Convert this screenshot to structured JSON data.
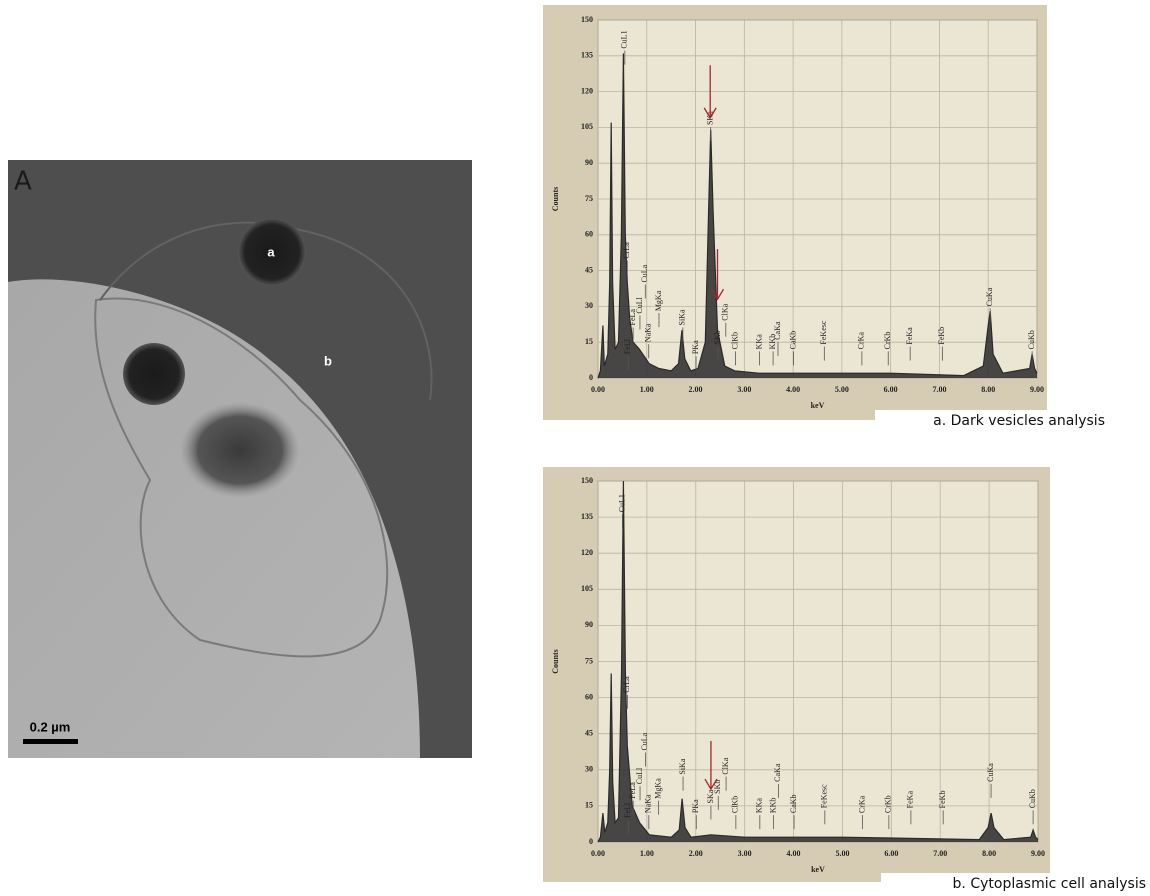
{
  "micrograph": {
    "panel_label": "A",
    "labels": [
      "a",
      "b"
    ],
    "scale_bar": "0.2 µm"
  },
  "chart_data": [
    {
      "type": "spectrum",
      "caption": "a. Dark vesicles analysis",
      "xlabel": "keV",
      "ylabel": "Counts",
      "color": "#2a2a2a",
      "grid": true,
      "xlim": [
        0,
        9
      ],
      "ylim": [
        0,
        150
      ],
      "xticks": [
        {
          "value": 0,
          "label": "0.00"
        },
        {
          "value": 1,
          "label": "1.00"
        },
        {
          "value": 2,
          "label": "2.00"
        },
        {
          "value": 3,
          "label": "3.00"
        },
        {
          "value": 4,
          "label": "4.00"
        },
        {
          "value": 5,
          "label": "5.00"
        },
        {
          "value": 6,
          "label": "6.00"
        },
        {
          "value": 7,
          "label": "7.00"
        },
        {
          "value": 8,
          "label": "8.00"
        },
        {
          "value": 9,
          "label": "9.00"
        }
      ],
      "yticks": [
        0,
        15,
        30,
        45,
        60,
        75,
        90,
        105,
        120,
        135,
        150
      ],
      "x": [
        0.0,
        0.05,
        0.1,
        0.13,
        0.2,
        0.24,
        0.27,
        0.3,
        0.35,
        0.42,
        0.48,
        0.52,
        0.56,
        0.6,
        0.65,
        0.72,
        0.85,
        0.95,
        1.05,
        1.25,
        1.5,
        1.65,
        1.72,
        1.78,
        1.9,
        2.05,
        2.2,
        2.28,
        2.31,
        2.36,
        2.45,
        2.6,
        2.8,
        3.3,
        3.7,
        4.5,
        6.0,
        7.5,
        7.9,
        8.0,
        8.04,
        8.1,
        8.3,
        8.85,
        8.9,
        8.95,
        9.0
      ],
      "values": [
        0,
        3,
        22,
        5,
        10,
        40,
        107,
        40,
        12,
        15,
        60,
        136,
        60,
        40,
        25,
        15,
        12,
        9,
        6,
        4,
        3,
        6,
        20,
        8,
        3,
        4,
        15,
        80,
        104,
        70,
        20,
        5,
        3,
        2,
        2,
        2,
        2,
        1,
        5,
        22,
        28,
        10,
        2,
        4,
        10,
        4,
        2
      ],
      "annotations": [
        {
          "text": "CuL1",
          "x": 0.55,
          "y": 138
        },
        {
          "text": "FeLl",
          "x": 0.62,
          "y": 10
        },
        {
          "text": "CrLa",
          "x": 0.6,
          "y": 50
        },
        {
          "text": "FeLa",
          "x": 0.72,
          "y": 22
        },
        {
          "text": "CuLl",
          "x": 0.86,
          "y": 27
        },
        {
          "text": "CuLa",
          "x": 0.97,
          "y": 40
        },
        {
          "text": "NaKa",
          "x": 1.04,
          "y": 15
        },
        {
          "text": "MgKa",
          "x": 1.25,
          "y": 28
        },
        {
          "text": "SiKa",
          "x": 1.74,
          "y": 22
        },
        {
          "text": "PKa",
          "x": 2.01,
          "y": 10
        },
        {
          "text": "SKa",
          "x": 2.31,
          "y": 106
        },
        {
          "text": "SKb",
          "x": 2.46,
          "y": 14
        },
        {
          "text": "ClKa",
          "x": 2.62,
          "y": 24
        },
        {
          "text": "ClKb",
          "x": 2.82,
          "y": 12
        },
        {
          "text": "KKa",
          "x": 3.31,
          "y": 12
        },
        {
          "text": "KKb",
          "x": 3.59,
          "y": 12
        },
        {
          "text": "CaKa",
          "x": 3.69,
          "y": 16
        },
        {
          "text": "CaKb",
          "x": 4.01,
          "y": 12
        },
        {
          "text": "FeKesc",
          "x": 4.64,
          "y": 14
        },
        {
          "text": "CrKa",
          "x": 5.41,
          "y": 12
        },
        {
          "text": "CrKb",
          "x": 5.95,
          "y": 12
        },
        {
          "text": "FeKa",
          "x": 6.4,
          "y": 14
        },
        {
          "text": "FeKb",
          "x": 7.06,
          "y": 14
        },
        {
          "text": "CuKa",
          "x": 8.04,
          "y": 30
        },
        {
          "text": "CuKb",
          "x": 8.9,
          "y": 12
        }
      ],
      "arrows": [
        {
          "x": 2.3,
          "y_start": 131,
          "y_end": 109
        },
        {
          "x": 2.45,
          "y_start": 54,
          "y_end": 33
        }
      ]
    },
    {
      "type": "spectrum",
      "caption": "b. Cytoplasmic cell analysis",
      "xlabel": "keV",
      "ylabel": "Counts",
      "color": "#2a2a2a",
      "grid": true,
      "xlim": [
        0,
        9
      ],
      "ylim": [
        0,
        150
      ],
      "xticks": [
        {
          "value": 0,
          "label": "0.00"
        },
        {
          "value": 1,
          "label": "1.00"
        },
        {
          "value": 2,
          "label": "2.00"
        },
        {
          "value": 3,
          "label": "3.00"
        },
        {
          "value": 4,
          "label": "4.00"
        },
        {
          "value": 5,
          "label": "5.00"
        },
        {
          "value": 6,
          "label": "6.00"
        },
        {
          "value": 7,
          "label": "7.00"
        },
        {
          "value": 8,
          "label": "8.00"
        },
        {
          "value": 9,
          "label": "9.00"
        }
      ],
      "yticks": [
        0,
        15,
        30,
        45,
        60,
        75,
        90,
        105,
        120,
        135,
        150
      ],
      "x": [
        0.0,
        0.05,
        0.1,
        0.14,
        0.2,
        0.24,
        0.27,
        0.3,
        0.35,
        0.42,
        0.48,
        0.52,
        0.56,
        0.6,
        0.7,
        0.85,
        1.05,
        1.5,
        1.66,
        1.72,
        1.78,
        1.9,
        2.31,
        3.0,
        5.0,
        7.8,
        7.98,
        8.04,
        8.1,
        8.3,
        8.85,
        8.9,
        8.95,
        9.0
      ],
      "values": [
        0,
        2,
        12,
        4,
        8,
        30,
        70,
        25,
        8,
        10,
        70,
        150,
        70,
        40,
        15,
        8,
        3,
        2,
        5,
        18,
        6,
        2,
        3,
        2,
        2,
        1,
        6,
        12,
        6,
        1,
        2,
        5,
        2,
        1
      ],
      "annotations": [
        {
          "text": "CuL1",
          "x": 0.5,
          "y": 137
        },
        {
          "text": "FeLl",
          "x": 0.62,
          "y": 10
        },
        {
          "text": "CrLa",
          "x": 0.6,
          "y": 62
        },
        {
          "text": "FeLa",
          "x": 0.72,
          "y": 18
        },
        {
          "text": "CuLl",
          "x": 0.86,
          "y": 24
        },
        {
          "text": "CuLa",
          "x": 0.97,
          "y": 38
        },
        {
          "text": "NaKa",
          "x": 1.04,
          "y": 12
        },
        {
          "text": "MgKa",
          "x": 1.24,
          "y": 18
        },
        {
          "text": "SiKa",
          "x": 1.74,
          "y": 28
        },
        {
          "text": "PKa",
          "x": 2.01,
          "y": 12
        },
        {
          "text": "SKa",
          "x": 2.31,
          "y": 16
        },
        {
          "text": "SKb",
          "x": 2.46,
          "y": 20
        },
        {
          "text": "ClKa",
          "x": 2.62,
          "y": 28
        },
        {
          "text": "ClKb",
          "x": 2.82,
          "y": 12
        },
        {
          "text": "KKa",
          "x": 3.31,
          "y": 12
        },
        {
          "text": "KKb",
          "x": 3.59,
          "y": 12
        },
        {
          "text": "CaKa",
          "x": 3.69,
          "y": 25
        },
        {
          "text": "CaKb",
          "x": 4.01,
          "y": 12
        },
        {
          "text": "FeKesc",
          "x": 4.64,
          "y": 14
        },
        {
          "text": "CrKa",
          "x": 5.41,
          "y": 12
        },
        {
          "text": "CrKb",
          "x": 5.95,
          "y": 12
        },
        {
          "text": "FeKa",
          "x": 6.4,
          "y": 14
        },
        {
          "text": "FeKb",
          "x": 7.06,
          "y": 14
        },
        {
          "text": "CuKa",
          "x": 8.04,
          "y": 25
        },
        {
          "text": "CuKb",
          "x": 8.9,
          "y": 14
        }
      ],
      "arrows": [
        {
          "x": 2.31,
          "y_start": 42,
          "y_end": 22
        }
      ]
    }
  ]
}
